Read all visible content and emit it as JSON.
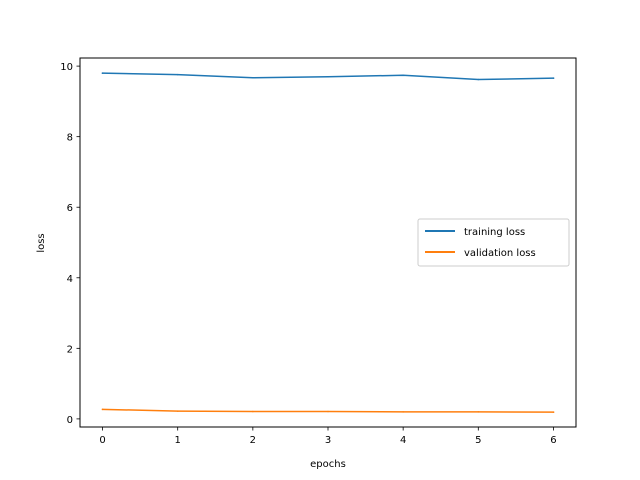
{
  "chart_data": {
    "type": "line",
    "xlabel": "epochs",
    "ylabel": "loss",
    "x": [
      0,
      1,
      2,
      3,
      4,
      5,
      6
    ],
    "xlim": [
      -0.3,
      6.3
    ],
    "ylim": [
      -0.23,
      10.23
    ],
    "xticks": [
      0,
      1,
      2,
      3,
      4,
      5,
      6
    ],
    "yticks": [
      0,
      2,
      4,
      6,
      8,
      10
    ],
    "xtick_labels": [
      "0",
      "1",
      "2",
      "3",
      "4",
      "5",
      "6"
    ],
    "ytick_labels": [
      "0",
      "2",
      "4",
      "6",
      "8",
      "10"
    ],
    "grid": false,
    "legend_position": "center-right",
    "series": [
      {
        "name": "training loss",
        "color": "#1f77b4",
        "values": [
          9.8,
          9.76,
          9.67,
          9.7,
          9.74,
          9.62,
          9.66
        ]
      },
      {
        "name": "validation loss",
        "color": "#ff7f0e",
        "values": [
          0.27,
          0.22,
          0.21,
          0.21,
          0.2,
          0.2,
          0.19
        ]
      }
    ]
  }
}
